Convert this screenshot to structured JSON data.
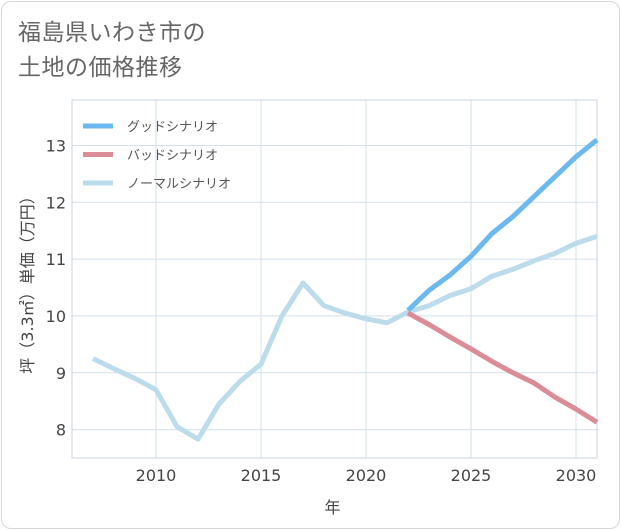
{
  "chart_data": {
    "type": "line",
    "title_lines": [
      "福島県いわき市の",
      "土地の価格推移"
    ],
    "xlabel": "年",
    "ylabel": "坪（3.3㎡）単価（万円）",
    "xlim": [
      2006,
      2031
    ],
    "ylim": [
      7.5,
      13.8
    ],
    "xticks": [
      2010,
      2015,
      2020,
      2025,
      2030
    ],
    "yticks": [
      8,
      9,
      10,
      11,
      12,
      13
    ],
    "grid": true,
    "legend_position": "top-left",
    "series": [
      {
        "name": "グッドシナリオ",
        "color": "#6bb9ee",
        "x": [
          2022,
          2023,
          2024,
          2025,
          2026,
          2027,
          2028,
          2029,
          2030,
          2031
        ],
        "values": [
          10.1,
          10.45,
          10.72,
          11.05,
          11.45,
          11.75,
          12.1,
          12.45,
          12.8,
          13.1
        ]
      },
      {
        "name": "バッドシナリオ",
        "color": "#dc8c96",
        "x": [
          2022,
          2023,
          2024,
          2025,
          2026,
          2027,
          2028,
          2029,
          2030,
          2031
        ],
        "values": [
          10.05,
          9.85,
          9.63,
          9.42,
          9.2,
          9.0,
          8.82,
          8.57,
          8.36,
          8.13
        ]
      },
      {
        "name": "ノーマルシナリオ",
        "color": "#bcdcec",
        "x": [
          2007,
          2008,
          2009,
          2010,
          2011,
          2012,
          2013,
          2014,
          2015,
          2016,
          2017,
          2018,
          2019,
          2020,
          2021,
          2022,
          2023,
          2024,
          2025,
          2026,
          2027,
          2028,
          2029,
          2030,
          2031
        ],
        "values": [
          9.25,
          9.07,
          8.9,
          8.7,
          8.05,
          7.83,
          8.45,
          8.85,
          9.15,
          10.0,
          10.58,
          10.18,
          10.05,
          9.95,
          9.88,
          10.07,
          10.18,
          10.36,
          10.48,
          10.7,
          10.82,
          10.97,
          11.1,
          11.28,
          11.4
        ]
      }
    ]
  }
}
